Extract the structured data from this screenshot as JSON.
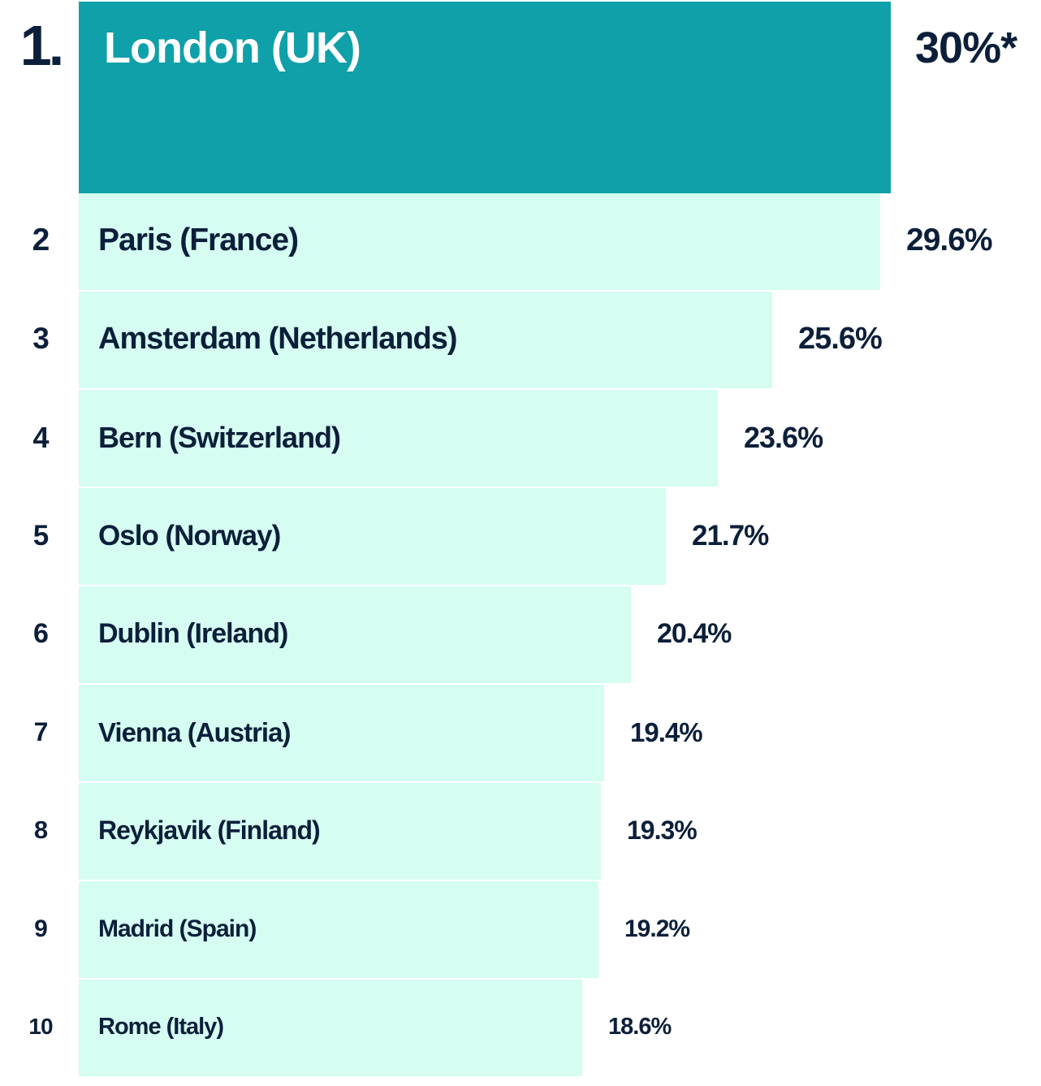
{
  "chart_data": {
    "type": "bar",
    "orientation": "horizontal",
    "grid": false,
    "legend": "none",
    "xlim": [
      0,
      30
    ],
    "colors": {
      "highlight": "#0fa0a9",
      "bar": "#d5fdf1",
      "text": "#0c1f3a",
      "highlight_text": "#ffffff"
    },
    "ranks": [
      "1.",
      "2",
      "3",
      "4",
      "5",
      "6",
      "7",
      "8",
      "9",
      "10"
    ],
    "categories": [
      "London (UK)",
      "Paris (France)",
      "Amsterdam (Netherlands)",
      "Bern (Switzerland)",
      "Oslo (Norway)",
      "Dublin (Ireland)",
      "Vienna (Austria)",
      "Reykjavik (Finland)",
      "Madrid (Spain)",
      "Rome (Italy)"
    ],
    "values": [
      30,
      29.6,
      25.6,
      23.6,
      21.7,
      20.4,
      19.4,
      19.3,
      19.2,
      18.6
    ],
    "value_labels": [
      "30%*",
      "29.6%",
      "25.6%",
      "23.6%",
      "21.7%",
      "20.4%",
      "19.4%",
      "19.3%",
      "19.2%",
      "18.6%"
    ]
  }
}
